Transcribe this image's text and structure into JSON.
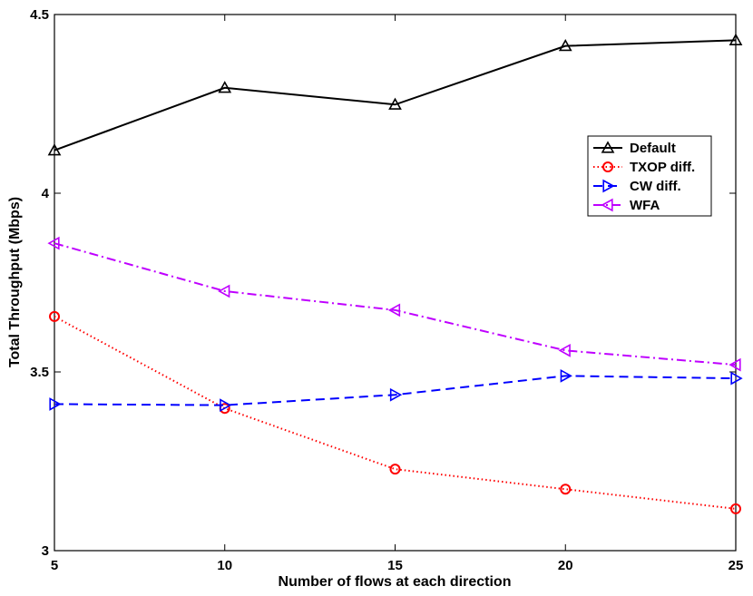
{
  "chart_data": {
    "type": "line",
    "title": "",
    "xlabel": "Number of flows at each direction",
    "ylabel": "Total Throughput (Mbps)",
    "x": [
      5,
      10,
      15,
      20,
      25
    ],
    "xlim": [
      5,
      25
    ],
    "ylim": [
      3,
      4.5
    ],
    "xticks": [
      5,
      10,
      15,
      20,
      25
    ],
    "yticks": [
      3,
      3.5,
      4,
      4.5
    ],
    "xtick_labels": [
      "5",
      "10",
      "15",
      "20",
      "25"
    ],
    "ytick_labels": [
      "3",
      "3.5",
      "4",
      "4.5"
    ],
    "grid": false,
    "legend_position": "right, upper-middle",
    "series": [
      {
        "name": "Default",
        "values": [
          4.12,
          4.295,
          4.248,
          4.412,
          4.428
        ],
        "color": "#000000",
        "dash": "solid",
        "marker": "triangle-up"
      },
      {
        "name": "TXOP diff.",
        "values": [
          3.655,
          3.398,
          3.228,
          3.172,
          3.117
        ],
        "color": "#ff0000",
        "dash": "dotted",
        "marker": "circle"
      },
      {
        "name": "CW diff.",
        "values": [
          3.41,
          3.407,
          3.436,
          3.489,
          3.482
        ],
        "color": "#0000ff",
        "dash": "dashed",
        "marker": "triangle-right"
      },
      {
        "name": "WFA",
        "values": [
          3.86,
          3.726,
          3.673,
          3.56,
          3.52
        ],
        "color": "#bf00ff",
        "dash": "dashdot",
        "marker": "triangle-left"
      }
    ]
  }
}
